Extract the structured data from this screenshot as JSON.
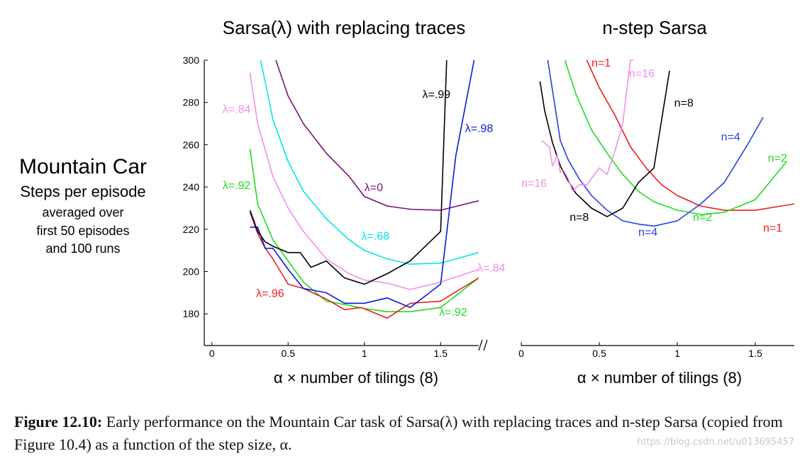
{
  "ylabel_lines": [
    "Mountain Car",
    "Steps per episode",
    "averaged over",
    "first 50 episodes",
    "and 100 runs"
  ],
  "caption": {
    "label": "Figure 12.10:",
    "text": "Early performance on the Mountain Car task of Sarsa(λ) with replacing traces and n-step Sarsa (copied from Figure 10.4) as a function of the step size, α."
  },
  "watermark": "https://blog.csdn.net/u013695457",
  "chart_data": [
    {
      "type": "line",
      "title": "Sarsa(λ) with replacing traces",
      "xlabel": "α × number of tilings (8)",
      "ylabel": "Mountain Car Steps per episode averaged over first 50 episodes and 100 runs",
      "xlim": [
        -0.05,
        1.75
      ],
      "ylim": [
        165,
        300
      ],
      "xticks": [
        "0",
        "0.5",
        "1",
        "1.5"
      ],
      "xtick_values": [
        0,
        0.5,
        1,
        1.5
      ],
      "yticks": [
        "180",
        "200",
        "220",
        "240",
        "260",
        "280",
        "300"
      ],
      "ytick_values": [
        180,
        200,
        220,
        240,
        260,
        280,
        300
      ],
      "grid": false,
      "series": [
        {
          "name": "λ=0",
          "color": "#7b0d7e",
          "label": "λ=0",
          "label_at": [
            1.0,
            238
          ],
          "x": [
            0.42,
            0.5,
            0.6,
            0.75,
            0.9,
            1.0,
            1.15,
            1.3,
            1.5,
            1.75
          ],
          "y": [
            300,
            283,
            270,
            256,
            245,
            235.5,
            231,
            229.5,
            229,
            233.5
          ]
        },
        {
          "name": "λ=.68",
          "color": "#00e5e8",
          "label": "λ=.68",
          "label_at": [
            0.98,
            215
          ],
          "x": [
            0.32,
            0.4,
            0.5,
            0.6,
            0.75,
            0.9,
            1.0,
            1.15,
            1.3,
            1.5,
            1.75
          ],
          "y": [
            300,
            272,
            252,
            238,
            225,
            215,
            210,
            206,
            203.5,
            204,
            209
          ]
        },
        {
          "name": "λ=.84",
          "color": "#f08ee8",
          "label": "λ=.84",
          "label_at": [
            0.07,
            275
          ],
          "label2": "λ=.84",
          "label2_at": [
            1.74,
            200
          ],
          "x": [
            0.25,
            0.3,
            0.4,
            0.5,
            0.6,
            0.75,
            0.9,
            1.0,
            1.15,
            1.3,
            1.5,
            1.75
          ],
          "y": [
            294,
            270,
            245,
            230,
            219,
            206,
            199,
            196,
            194.5,
            191.5,
            195,
            201
          ]
        },
        {
          "name": "λ=.92",
          "color": "#1edc1e",
          "label": "λ=.92",
          "label_at": [
            0.07,
            239
          ],
          "label2": "λ=.92",
          "label2_at": [
            1.49,
            179
          ],
          "x": [
            0.25,
            0.3,
            0.4,
            0.5,
            0.6,
            0.75,
            0.9,
            1.0,
            1.15,
            1.3,
            1.5,
            1.75
          ],
          "y": [
            258,
            232,
            215,
            205,
            195,
            186,
            184,
            182.5,
            181,
            181,
            183,
            197
          ]
        },
        {
          "name": "λ=.96",
          "color": "#ee1c1c",
          "label": "λ=.96",
          "label_at": [
            0.29,
            188
          ],
          "x": [
            0.25,
            0.3,
            0.35,
            0.4,
            0.5,
            0.6,
            0.75,
            0.87,
            0.98,
            1.15,
            1.3,
            1.5,
            1.75
          ],
          "y": [
            228,
            218,
            211,
            206,
            194,
            192,
            187,
            182,
            183,
            178,
            185,
            186,
            197
          ]
        },
        {
          "name": "λ=.98",
          "color": "#0b18d6",
          "label": "λ=.98",
          "label_at": [
            1.66,
            266
          ],
          "x": [
            0.25,
            0.3,
            0.35,
            0.4,
            0.5,
            0.6,
            0.75,
            0.87,
            1.0,
            1.15,
            1.3,
            1.5,
            1.6,
            1.72
          ],
          "y": [
            221,
            221,
            211,
            211,
            201,
            192,
            190,
            185,
            185,
            187.5,
            183,
            194,
            255,
            300
          ]
        },
        {
          "name": "λ=.99",
          "color": "#000000",
          "label": "λ=.99",
          "label_at": [
            1.38,
            282
          ],
          "x": [
            0.25,
            0.3,
            0.35,
            0.4,
            0.5,
            0.58,
            0.65,
            0.75,
            0.87,
            1.0,
            1.15,
            1.3,
            1.5,
            1.54
          ],
          "y": [
            229,
            219,
            214,
            212,
            209,
            209,
            202,
            205,
            197,
            194,
            199,
            205,
            219,
            300
          ]
        }
      ]
    },
    {
      "type": "line",
      "title": "n-step Sarsa",
      "xlabel": "α × number of tilings (8)",
      "xlim": [
        0,
        1.75
      ],
      "ylim": [
        165,
        300
      ],
      "xticks": [
        "0",
        "0.5",
        "1",
        "1.5"
      ],
      "xtick_values": [
        0,
        0.5,
        1,
        1.5
      ],
      "grid": false,
      "series": [
        {
          "name": "n=1",
          "color": "#ee1c1c",
          "label": "n=1",
          "label_at": [
            0.45,
            297
          ],
          "label2": "n=1",
          "label2_at": [
            1.55,
            219
          ],
          "x": [
            0.42,
            0.5,
            0.6,
            0.7,
            0.8,
            0.9,
            1.0,
            1.15,
            1.3,
            1.5,
            1.75
          ],
          "y": [
            300,
            287,
            274,
            259,
            249,
            241,
            236,
            231,
            229,
            229,
            232
          ]
        },
        {
          "name": "n=2",
          "color": "#1edc1e",
          "label": "n=2",
          "label_at": [
            1.58,
            252
          ],
          "label2": "n=2",
          "label2_at": [
            1.1,
            224
          ],
          "x": [
            0.28,
            0.35,
            0.45,
            0.55,
            0.65,
            0.75,
            0.85,
            1.0,
            1.15,
            1.3,
            1.5,
            1.7
          ],
          "y": [
            300,
            284,
            267,
            256,
            246,
            238,
            233,
            229,
            227,
            228,
            234,
            252
          ]
        },
        {
          "name": "n=4",
          "color": "#2244dd",
          "label": "n=4",
          "label_at": [
            1.28,
            262
          ],
          "label2": "n=4",
          "label2_at": [
            0.75,
            217
          ],
          "x": [
            0.17,
            0.25,
            0.3,
            0.37,
            0.45,
            0.55,
            0.65,
            0.75,
            0.85,
            1.0,
            1.15,
            1.3,
            1.45,
            1.55
          ],
          "y": [
            300,
            262,
            253,
            244,
            236,
            229,
            224,
            222.5,
            221.5,
            224,
            232,
            242,
            260,
            273
          ]
        },
        {
          "name": "n=8",
          "color": "#000000",
          "label": "n=8",
          "label_at": [
            0.98,
            278
          ],
          "label2": "n=8",
          "label2_at": [
            0.31,
            224
          ],
          "x": [
            0.12,
            0.15,
            0.2,
            0.25,
            0.3,
            0.35,
            0.45,
            0.55,
            0.65,
            0.75,
            0.85,
            0.95
          ],
          "y": [
            290,
            276,
            261,
            250,
            243,
            237,
            230,
            226,
            230,
            242,
            249,
            295
          ]
        },
        {
          "name": "n=16",
          "color": "#f08ee8",
          "label": "n=16",
          "label_at": [
            0.69,
            292
          ],
          "label2": "n=16",
          "label2_at": [
            0.0,
            240
          ],
          "x": [
            0.13,
            0.18,
            0.2,
            0.23,
            0.25,
            0.27,
            0.3,
            0.33,
            0.37,
            0.42,
            0.5,
            0.55,
            0.6,
            0.65,
            0.7,
            0.72
          ],
          "y": [
            262,
            259,
            250,
            255,
            247,
            248,
            244,
            238,
            241,
            241,
            249,
            246,
            257,
            270,
            300,
            300
          ]
        }
      ]
    }
  ]
}
